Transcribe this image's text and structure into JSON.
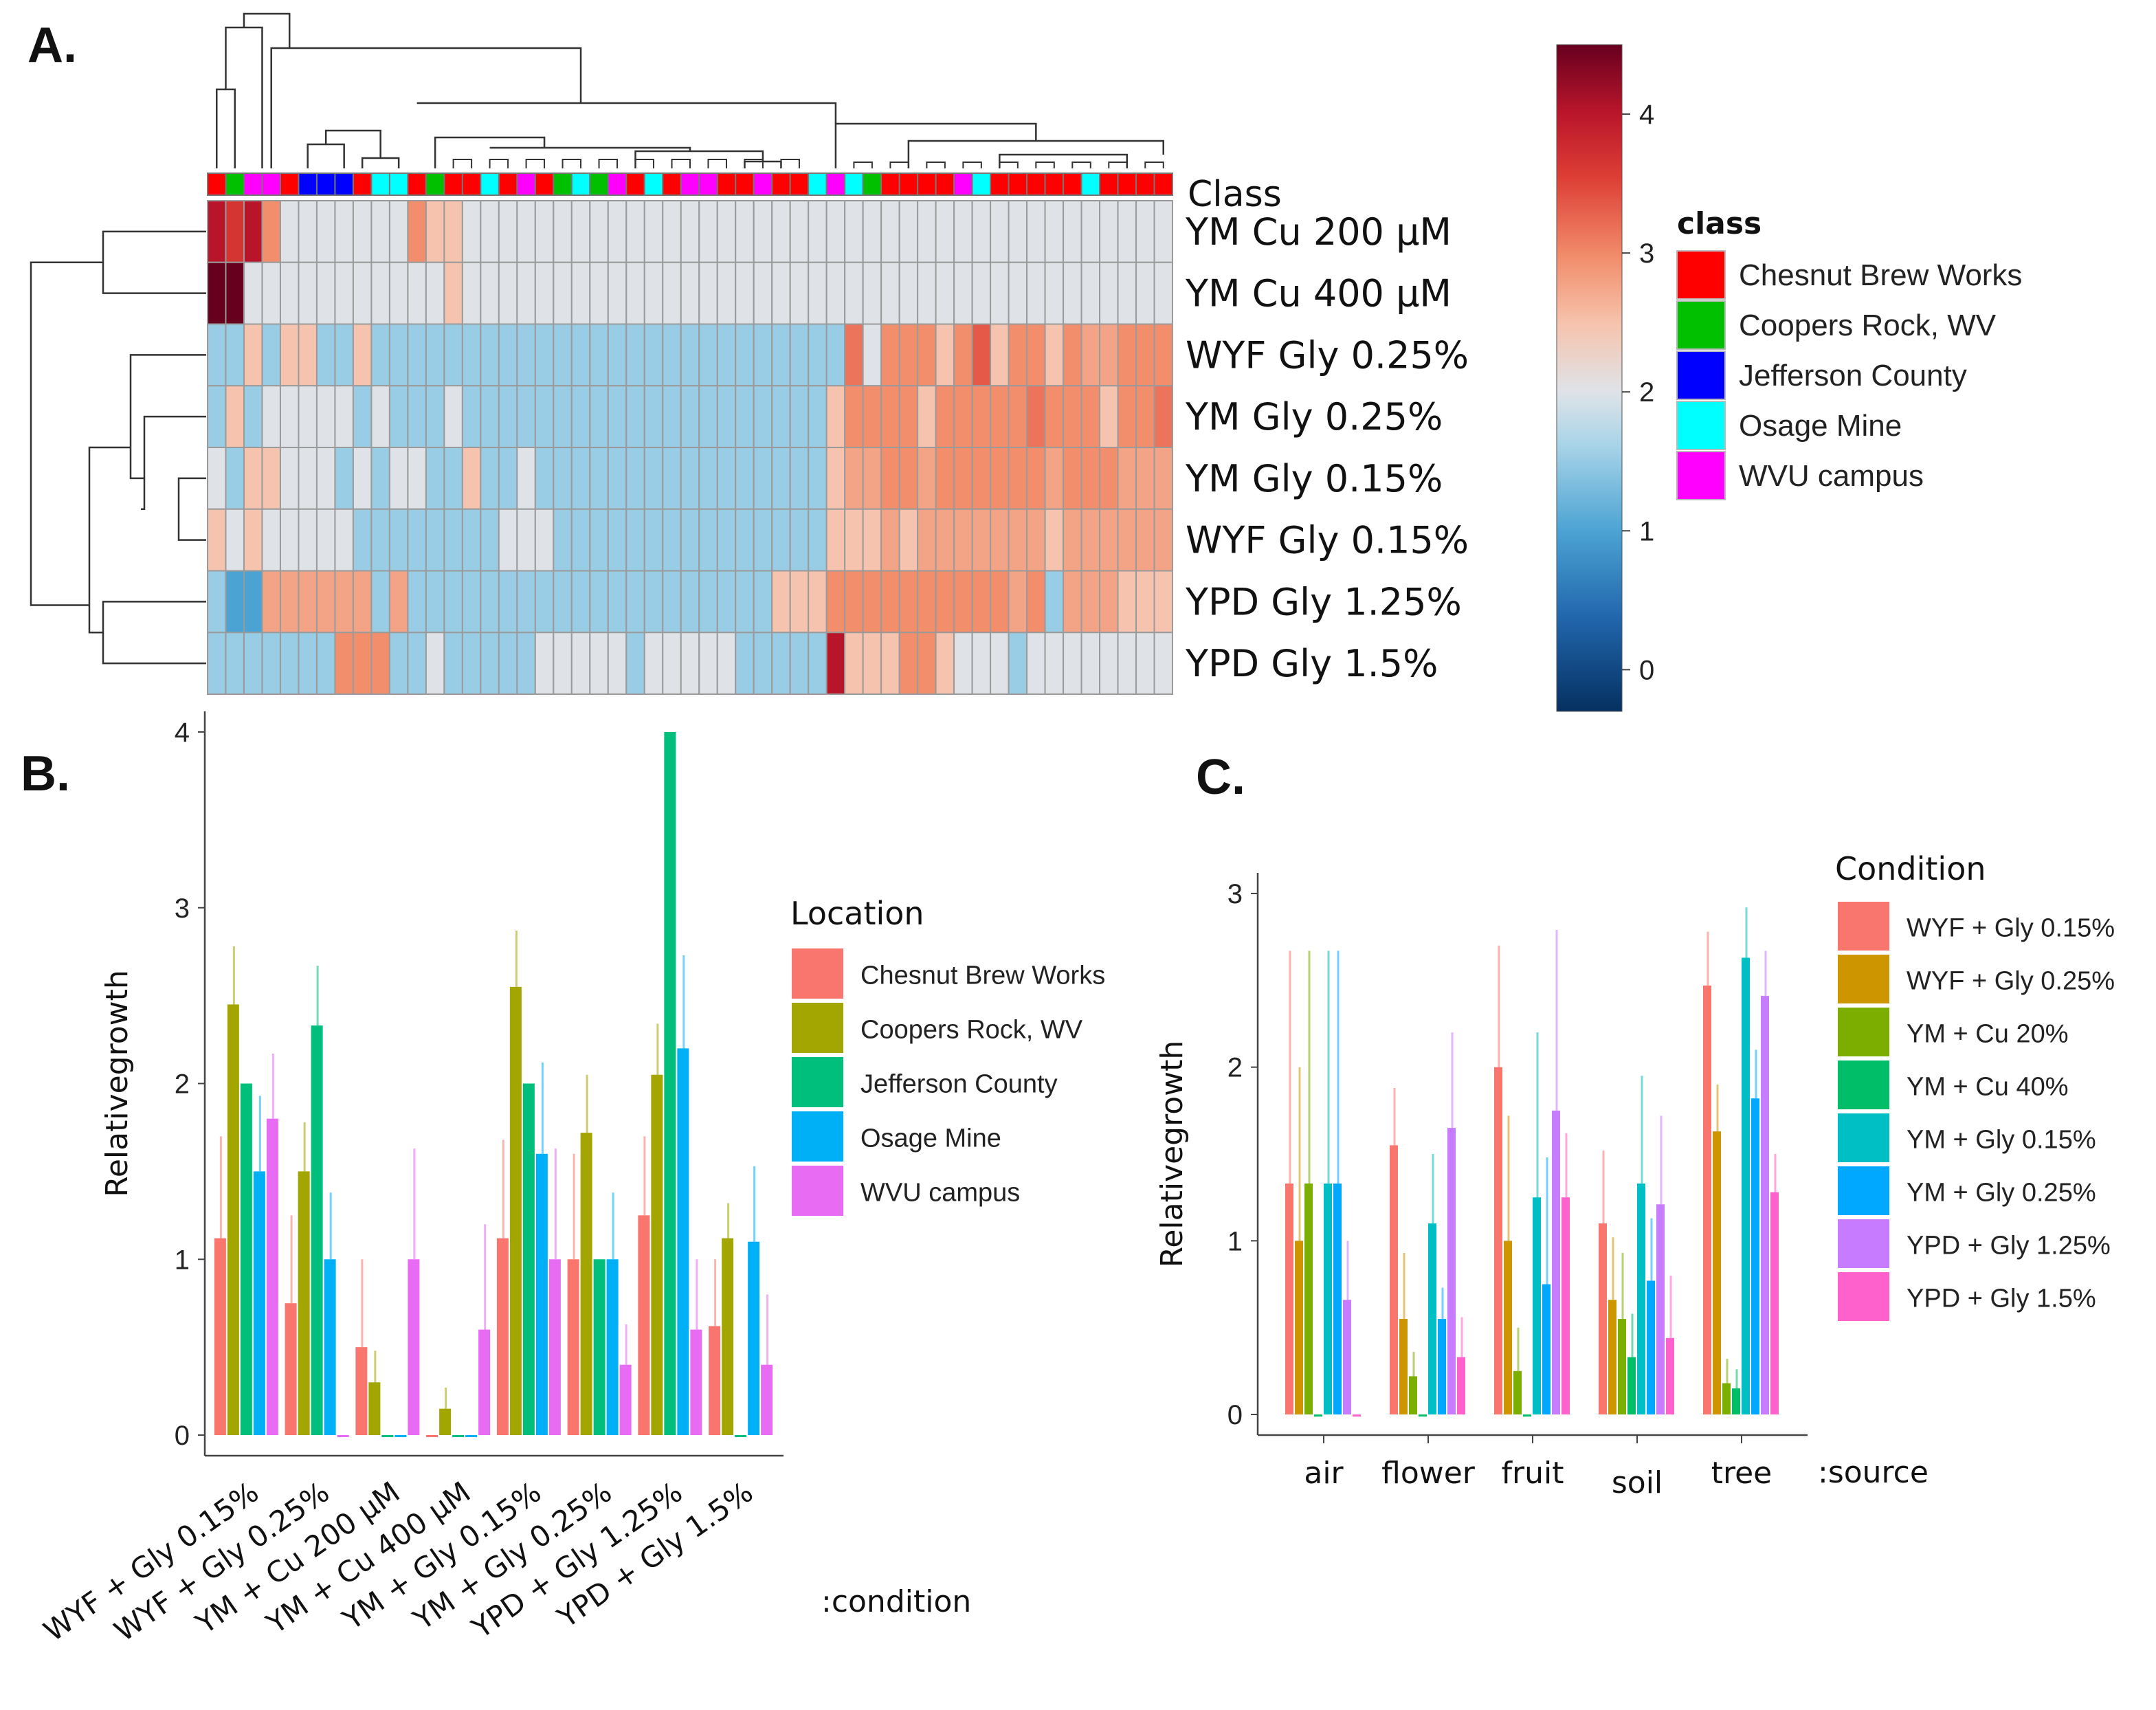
{
  "panel_labels": {
    "a": "A.",
    "b": "B.",
    "c": "C."
  },
  "colors": {
    "chesnut": "#ff0000",
    "coopers": "#00c000",
    "jefferson": "#0000ff",
    "osage": "#00ffff",
    "wvu": "#ff00ff",
    "heat_scale": [
      "#053061",
      "#2b83ba",
      "#abd9e9",
      "#dfe3e8",
      "#f4b6a0",
      "#e8593c",
      "#c0182b",
      "#6b0418"
    ]
  },
  "chart_data": [
    {
      "type": "heatmap",
      "panel": "A.",
      "class_label": "Class",
      "rows": [
        "YM Cu 200 μM",
        "YM Cu 400 μM",
        "WYF Gly 0.25%",
        "YM Gly 0.25%",
        "YM Gly 0.15%",
        "WYF Gly 0.15%",
        "YPD Gly 1.25%",
        "YPD Gly 1.5%"
      ],
      "legend_title": "class",
      "legend_classes": [
        "Chesnut Brew Works",
        "Coopers Rock, WV",
        "Jefferson County",
        "Osage Mine",
        "WVU campus"
      ],
      "class_codes": [
        "C",
        "M",
        "R",
        "R",
        "C",
        "J",
        "J",
        "J",
        "C",
        "O",
        "O",
        "C",
        "M",
        "C",
        "C",
        "O",
        "C",
        "R",
        "C",
        "M",
        "O",
        "M",
        "R",
        "C",
        "O",
        "C",
        "R",
        "R",
        "C",
        "C",
        "R",
        "C",
        "C",
        "O",
        "R",
        "O",
        "M",
        "C",
        "C",
        "C",
        "C",
        "R",
        "O",
        "C",
        "C",
        "C",
        "C",
        "C",
        "O",
        "C",
        "C",
        "C",
        "C"
      ],
      "colorbar_ticks": [
        0,
        1,
        2,
        3,
        4
      ],
      "colorbar_range": [
        -0.3,
        4.5
      ],
      "values": [
        [
          4.0,
          3.7,
          4.0,
          3.0,
          2.0,
          2.0,
          2.0,
          2.0,
          2.0,
          2.0,
          2.0,
          3.0,
          2.5,
          2.5,
          2.0,
          2.0,
          2.0,
          2.0,
          2.0,
          2.0,
          2.0,
          2.0,
          2.0,
          2.0,
          2.0,
          2.0,
          2.0,
          2.0,
          2.0,
          2.0,
          2.0,
          2.0,
          2.0,
          2.0,
          2.0,
          2.0,
          2.0,
          2.0,
          2.0,
          2.0,
          2.0,
          2.0,
          2.0,
          2.0,
          2.0,
          2.0,
          2.0,
          2.0,
          2.0,
          2.0,
          2.0,
          2.0,
          2.0
        ],
        [
          4.5,
          4.5,
          2.0,
          2.0,
          2.0,
          2.0,
          2.0,
          2.0,
          2.0,
          2.0,
          2.0,
          2.0,
          2.0,
          2.5,
          2.0,
          2.0,
          2.0,
          2.0,
          2.0,
          2.0,
          2.0,
          2.0,
          2.0,
          2.0,
          2.0,
          2.0,
          2.0,
          2.0,
          2.0,
          2.0,
          2.0,
          2.0,
          2.0,
          2.0,
          2.0,
          2.0,
          2.0,
          2.0,
          2.0,
          2.0,
          2.0,
          2.0,
          2.0,
          2.0,
          2.0,
          2.0,
          2.0,
          2.0,
          2.0,
          2.0,
          2.0,
          2.0,
          2.0
        ],
        [
          1.5,
          1.5,
          2.5,
          1.5,
          2.5,
          2.5,
          1.5,
          1.5,
          2.5,
          1.5,
          1.5,
          1.5,
          1.5,
          1.5,
          1.5,
          1.5,
          1.5,
          1.5,
          1.5,
          1.5,
          1.5,
          1.5,
          1.5,
          1.5,
          1.5,
          1.5,
          1.5,
          1.5,
          1.5,
          1.5,
          1.5,
          1.5,
          1.5,
          1.5,
          1.5,
          3.2,
          2.0,
          3.0,
          3.0,
          3.0,
          2.5,
          3.0,
          3.4,
          2.5,
          3.0,
          3.0,
          2.5,
          3.0,
          2.8,
          2.8,
          3.0,
          3.0,
          3.0
        ],
        [
          1.5,
          2.5,
          1.5,
          2.0,
          2.0,
          2.0,
          2.0,
          2.0,
          1.5,
          2.0,
          1.5,
          1.5,
          1.5,
          2.0,
          1.5,
          1.5,
          1.5,
          1.5,
          1.5,
          1.5,
          1.5,
          1.5,
          1.5,
          1.5,
          1.5,
          1.5,
          1.5,
          1.5,
          1.5,
          1.5,
          1.5,
          1.5,
          1.5,
          1.5,
          2.5,
          3.0,
          3.0,
          3.0,
          3.0,
          2.5,
          3.0,
          3.0,
          3.0,
          3.0,
          3.0,
          3.2,
          3.0,
          3.0,
          3.0,
          2.5,
          3.0,
          3.0,
          3.2
        ],
        [
          2.0,
          1.5,
          2.5,
          2.5,
          2.0,
          2.0,
          2.0,
          1.5,
          2.0,
          1.5,
          2.0,
          2.0,
          1.5,
          1.5,
          2.5,
          1.5,
          1.5,
          2.0,
          1.5,
          1.5,
          1.5,
          1.5,
          1.5,
          1.5,
          1.5,
          1.5,
          1.5,
          1.5,
          1.5,
          1.5,
          1.5,
          1.5,
          1.5,
          1.5,
          2.5,
          2.8,
          2.8,
          3.0,
          3.0,
          2.8,
          3.0,
          3.0,
          3.0,
          3.0,
          3.0,
          3.0,
          2.8,
          3.0,
          3.0,
          3.0,
          2.8,
          2.8,
          2.8
        ],
        [
          2.5,
          2.0,
          2.5,
          2.0,
          2.0,
          2.0,
          2.0,
          2.0,
          1.5,
          1.5,
          1.5,
          1.5,
          1.5,
          1.5,
          1.5,
          1.5,
          2.0,
          2.0,
          2.0,
          1.5,
          1.5,
          1.5,
          1.5,
          1.5,
          1.5,
          1.5,
          1.5,
          1.5,
          1.5,
          1.5,
          1.5,
          1.5,
          1.5,
          1.5,
          2.5,
          2.5,
          2.5,
          2.8,
          2.5,
          2.8,
          2.8,
          2.8,
          2.8,
          2.8,
          2.8,
          2.8,
          2.5,
          2.8,
          2.8,
          2.8,
          2.8,
          2.8,
          2.8
        ],
        [
          1.5,
          1.0,
          1.0,
          2.8,
          2.8,
          2.8,
          2.8,
          2.8,
          2.8,
          1.5,
          2.8,
          1.5,
          1.5,
          1.5,
          1.5,
          1.5,
          1.5,
          1.5,
          1.5,
          1.5,
          1.5,
          1.5,
          1.5,
          1.5,
          1.5,
          1.5,
          1.5,
          1.5,
          1.5,
          1.5,
          1.5,
          2.5,
          2.5,
          2.5,
          3.0,
          3.0,
          3.0,
          3.0,
          3.0,
          3.0,
          3.0,
          3.0,
          3.0,
          3.0,
          2.8,
          3.0,
          1.5,
          2.8,
          2.8,
          2.8,
          2.5,
          2.5,
          2.5
        ],
        [
          1.5,
          1.5,
          1.5,
          1.5,
          1.5,
          1.5,
          1.5,
          3.0,
          3.0,
          3.0,
          1.5,
          1.5,
          2.0,
          1.5,
          1.5,
          1.5,
          1.5,
          1.5,
          2.0,
          2.0,
          2.0,
          2.0,
          2.0,
          1.5,
          2.0,
          2.0,
          2.0,
          2.0,
          2.0,
          1.5,
          1.5,
          1.5,
          1.5,
          1.5,
          4.0,
          2.5,
          2.5,
          2.5,
          3.0,
          3.0,
          2.5,
          2.0,
          2.0,
          2.0,
          1.5,
          2.0,
          2.0,
          2.0,
          2.0,
          2.0,
          2.0,
          2.0,
          2.0
        ]
      ]
    },
    {
      "type": "bar",
      "panel": "B.",
      "ylabel": "Relativegrowth",
      "xlabel": ":condition",
      "legend_title": "Location",
      "ylim": [
        0,
        4
      ],
      "yticks": [
        0,
        1,
        2,
        3,
        4
      ],
      "categories": [
        "WYF + Gly 0.15%",
        "WYF + Gly 0.25%",
        "YM + Cu 200 μM",
        "YM + Cu 400 μM",
        "YM + Gly 0.15%",
        "YM + Gly 0.25%",
        "YPD + Gly 1.25%",
        "YPD + Gly 1.5%"
      ],
      "series": [
        {
          "name": "Chesnut Brew Works",
          "color": "#f8766d",
          "values": [
            1.12,
            0.75,
            0.5,
            0.0,
            1.12,
            1.0,
            1.25,
            0.62
          ],
          "errors": [
            1.7,
            1.25,
            1.0,
            0.0,
            1.68,
            1.6,
            1.7,
            1.0
          ]
        },
        {
          "name": "Coopers Rock, WV",
          "color": "#a3a500",
          "values": [
            2.45,
            1.5,
            0.3,
            0.15,
            2.55,
            1.72,
            2.05,
            1.12
          ],
          "errors": [
            2.78,
            1.78,
            0.48,
            0.27,
            2.87,
            2.05,
            2.34,
            1.32
          ]
        },
        {
          "name": "Jefferson County",
          "color": "#00bf7d",
          "values": [
            2.0,
            2.33,
            0.0,
            0.0,
            2.0,
            1.0,
            4.0,
            0.0
          ],
          "errors": [
            2.0,
            2.67,
            0.0,
            0.0,
            2.0,
            1.0,
            4.0,
            0.0
          ]
        },
        {
          "name": "Osage Mine",
          "color": "#00b0f6",
          "values": [
            1.5,
            1.0,
            0.0,
            0.0,
            1.6,
            1.0,
            2.2,
            1.1
          ],
          "errors": [
            1.93,
            1.38,
            0.0,
            0.0,
            2.12,
            1.38,
            2.73,
            1.53
          ]
        },
        {
          "name": "WVU campus",
          "color": "#e76bf3",
          "values": [
            1.8,
            0.0,
            1.0,
            0.6,
            1.0,
            0.4,
            0.6,
            0.4
          ],
          "errors": [
            2.17,
            0.0,
            1.63,
            1.2,
            1.63,
            0.63,
            1.0,
            0.8
          ]
        }
      ]
    },
    {
      "type": "bar",
      "panel": "C.",
      "ylabel": "Relativegrowth",
      "xlabel": ":source",
      "legend_title": "Condition",
      "ylim": [
        0,
        3
      ],
      "yticks": [
        0,
        1,
        2,
        3
      ],
      "categories": [
        "air",
        "flower",
        "fruit",
        "soil",
        "tree"
      ],
      "series": [
        {
          "name": "WYF + Gly 0.15%",
          "color": "#f8766d",
          "values": [
            1.33,
            1.55,
            2.0,
            1.1,
            2.47
          ],
          "errors": [
            2.67,
            1.88,
            2.7,
            1.52,
            2.78
          ]
        },
        {
          "name": "WYF + Gly 0.25%",
          "color": "#cd9600",
          "values": [
            1.0,
            0.55,
            1.0,
            0.66,
            1.63
          ],
          "errors": [
            2.0,
            0.93,
            1.72,
            1.02,
            1.9
          ]
        },
        {
          "name": "YM + Cu 20%",
          "color": "#7cae00",
          "values": [
            1.33,
            0.22,
            0.25,
            0.55,
            0.18
          ],
          "errors": [
            2.67,
            0.36,
            0.5,
            0.93,
            0.32
          ]
        },
        {
          "name": "YM + Cu 40%",
          "color": "#00be67",
          "values": [
            0.0,
            0.0,
            0.0,
            0.33,
            0.15
          ],
          "errors": [
            0.0,
            0.0,
            0.0,
            0.58,
            0.26
          ]
        },
        {
          "name": "YM + Gly 0.15%",
          "color": "#00bfc4",
          "values": [
            1.33,
            1.1,
            1.25,
            1.33,
            2.63
          ],
          "errors": [
            2.67,
            1.5,
            2.2,
            1.95,
            2.92
          ]
        },
        {
          "name": "YM + Gly 0.25%",
          "color": "#00a9ff",
          "values": [
            1.33,
            0.55,
            0.75,
            0.77,
            1.82
          ],
          "errors": [
            2.67,
            0.73,
            1.48,
            1.13,
            2.1
          ]
        },
        {
          "name": "YPD + Gly 1.25%",
          "color": "#c77cff",
          "values": [
            0.66,
            1.65,
            1.75,
            1.21,
            2.41
          ],
          "errors": [
            1.0,
            2.2,
            2.79,
            1.72,
            2.67
          ]
        },
        {
          "name": "YPD + Gly 1.5%",
          "color": "#ff61cc",
          "values": [
            0.0,
            0.33,
            1.25,
            0.44,
            1.28
          ],
          "errors": [
            0.0,
            0.56,
            1.62,
            0.8,
            1.5
          ]
        }
      ]
    }
  ]
}
